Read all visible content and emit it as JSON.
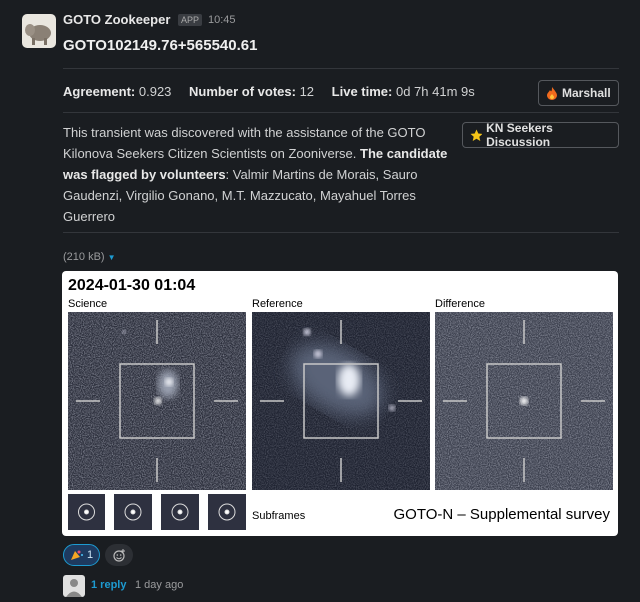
{
  "message": {
    "app_name": "GOTO Zookeeper",
    "badge": "APP",
    "time": "10:45",
    "title": "GOTO102149.76+565540.61",
    "fields": [
      {
        "label": "Agreement:",
        "value": "0.923"
      },
      {
        "label": "Number of votes:",
        "value": "12"
      },
      {
        "label": "Live time:",
        "value": "0d 7h 41m 9s"
      }
    ],
    "buttons": [
      "Marshall",
      "KN Seekers Discussion"
    ],
    "text": {
      "intro": "This transient was discovered with the assistance of the GOTO Kilonova Seekers Citizen Scientists on Zooniverse.",
      "bold": "The candidate was flagged by volunteers",
      "rest": ": Valmir Martins de Morais, Sauro Gaudenzi, Virgilio Gonano, M.T. Mazzucato, Mayahuel Torres Guerrero"
    },
    "file_size": "(210 kB)",
    "image": {
      "date": "2024-01-30 01:04",
      "panels": [
        "Science",
        "Reference",
        "Difference"
      ],
      "subframes_label": "Subframes",
      "survey": "GOTO-N – Supplemental survey"
    },
    "reaction_count": "1",
    "replies": "1 reply",
    "reply_time": "1 day ago"
  }
}
